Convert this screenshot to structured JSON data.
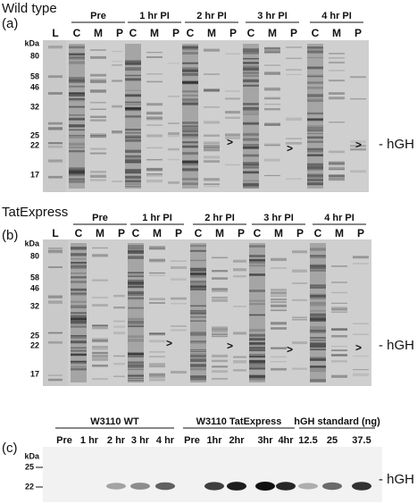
{
  "panel_a": {
    "label": "(a)",
    "title": "Wild type",
    "ladder": "L",
    "groups": [
      {
        "name": "Pre",
        "lanes": [
          "C",
          "M",
          "P"
        ]
      },
      {
        "name": "1 hr PI",
        "lanes": [
          "C",
          "M",
          "P"
        ]
      },
      {
        "name": "2 hr PI",
        "lanes": [
          "C",
          "M",
          "P"
        ]
      },
      {
        "name": "3 hr PI",
        "lanes": [
          "C",
          "M",
          "P"
        ]
      },
      {
        "name": "4 hr PI",
        "lanes": [
          "C",
          "M",
          "P"
        ]
      }
    ],
    "kda": "kDa",
    "markers": [
      "80",
      "58",
      "46",
      "32",
      "25",
      "22",
      "17"
    ],
    "arrows": [
      ">",
      ">",
      ">"
    ],
    "band_label": "- hGH"
  },
  "panel_b": {
    "label": "(b)",
    "title": "TatExpress",
    "ladder": "L",
    "groups": [
      {
        "name": "Pre",
        "lanes": [
          "C",
          "M",
          "P"
        ]
      },
      {
        "name": "1 hr PI",
        "lanes": [
          "C",
          "M",
          "P"
        ]
      },
      {
        "name": "2 hr PI",
        "lanes": [
          "C",
          "M",
          "P"
        ]
      },
      {
        "name": "3 hr PI",
        "lanes": [
          "C",
          "M",
          "P"
        ]
      },
      {
        "name": "4 hr PI",
        "lanes": [
          "C",
          "M",
          "P"
        ]
      }
    ],
    "kda": "kDa",
    "markers": [
      "80",
      "58",
      "46",
      "32",
      "25",
      "22",
      "17"
    ],
    "arrows": [
      ">",
      ">",
      ">",
      ">"
    ],
    "band_label": "- hGH"
  },
  "panel_c": {
    "label": "(c)",
    "groups": [
      "W3110 WT",
      "W3110 TatExpress",
      "hGH standard (ng)"
    ],
    "lanes": [
      "Pre",
      "1 hr",
      "2 hr",
      "3 hr",
      "4 hr",
      "Pre",
      "1hr",
      "2hr",
      "3hr",
      "4hr",
      "12.5",
      "25",
      "37.5"
    ],
    "kda": "kDa",
    "markers": [
      "25",
      "22"
    ],
    "band_label": "- hGH"
  }
}
